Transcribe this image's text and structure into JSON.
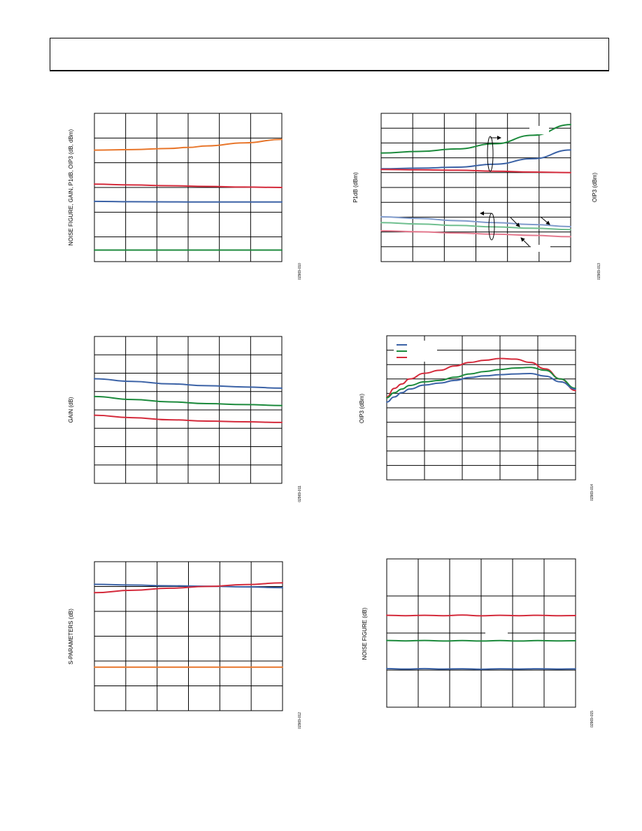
{
  "header": {},
  "colors": {
    "orange": "#e8762b",
    "red": "#d42a3b",
    "blue": "#3b62a6",
    "green": "#1c8a3c",
    "light_blue": "#7f9acb",
    "light_green": "#6fbf8f",
    "pink": "#e3778c",
    "grid": "#000000"
  },
  "chart_data": [
    {
      "id": "chart-1",
      "type": "line",
      "ylabel": "NOISE FIGURE, GAIN, P1dB, OIP3 (dB, dBm)",
      "code": "02969-010",
      "grid_cols": 6,
      "grid_rows": 6,
      "series": [
        {
          "color": "#e8762b",
          "values": [
            [
              0,
              0.752
            ],
            [
              0.2,
              0.755
            ],
            [
              0.4,
              0.763
            ],
            [
              0.5,
              0.77
            ],
            [
              0.6,
              0.78
            ],
            [
              0.8,
              0.801
            ],
            [
              1,
              0.824
            ]
          ]
        },
        {
          "color": "#d42a3b",
          "values": [
            [
              0,
              0.522
            ],
            [
              0.2,
              0.517
            ],
            [
              0.4,
              0.512
            ],
            [
              0.6,
              0.507
            ],
            [
              0.8,
              0.503
            ],
            [
              1,
              0.5
            ]
          ]
        },
        {
          "color": "#3b62a6",
          "values": [
            [
              0,
              0.406
            ],
            [
              0.2,
              0.404
            ],
            [
              0.4,
              0.403
            ],
            [
              0.6,
              0.402
            ],
            [
              0.8,
              0.402
            ],
            [
              1,
              0.402
            ]
          ]
        },
        {
          "color": "#1c8a3c",
          "values": [
            [
              0,
              0.078
            ],
            [
              0.5,
              0.078
            ],
            [
              1,
              0.078
            ]
          ]
        }
      ]
    },
    {
      "id": "chart-2",
      "type": "line",
      "ylabel": "P1dB (dBm)",
      "ylabel_right": "OIP3 (dBm)",
      "code": "02969-013",
      "grid_cols": 6,
      "grid_rows": 10,
      "series": [
        {
          "color": "#1c8a3c",
          "values": [
            [
              0,
              0.732
            ],
            [
              0.2,
              0.743
            ],
            [
              0.4,
              0.76
            ],
            [
              0.6,
              0.795
            ],
            [
              0.8,
              0.852
            ],
            [
              1,
              0.924
            ]
          ]
        },
        {
          "color": "#3b62a6",
          "values": [
            [
              0,
              0.626
            ],
            [
              0.2,
              0.63
            ],
            [
              0.4,
              0.637
            ],
            [
              0.6,
              0.657
            ],
            [
              0.8,
              0.694
            ],
            [
              1,
              0.753
            ]
          ]
        },
        {
          "color": "#d42a3b",
          "values": [
            [
              0,
              0.621
            ],
            [
              0.2,
              0.619
            ],
            [
              0.4,
              0.616
            ],
            [
              0.6,
              0.61
            ],
            [
              0.8,
              0.604
            ],
            [
              1,
              0.6
            ]
          ]
        },
        {
          "color": "#7f9acb",
          "values": [
            [
              0,
              0.302
            ],
            [
              0.2,
              0.291
            ],
            [
              0.4,
              0.276
            ],
            [
              0.6,
              0.263
            ],
            [
              0.8,
              0.25
            ],
            [
              1,
              0.236
            ]
          ]
        },
        {
          "color": "#6fbf8f",
          "values": [
            [
              0,
              0.263
            ],
            [
              0.2,
              0.254
            ],
            [
              0.4,
              0.244
            ],
            [
              0.6,
              0.234
            ],
            [
              0.8,
              0.225
            ],
            [
              1,
              0.216
            ]
          ]
        },
        {
          "color": "#e3778c",
          "values": [
            [
              0,
              0.208
            ],
            [
              0.2,
              0.201
            ],
            [
              0.4,
              0.193
            ],
            [
              0.6,
              0.185
            ],
            [
              0.8,
              0.177
            ],
            [
              1,
              0.168
            ]
          ]
        }
      ]
    },
    {
      "id": "chart-3",
      "type": "line",
      "ylabel": "GAIN (dB)",
      "code": "02969-011",
      "grid_cols": 6,
      "grid_rows": 8,
      "series": [
        {
          "color": "#3b62a6",
          "values": [
            [
              0,
              0.712
            ],
            [
              0.2,
              0.694
            ],
            [
              0.4,
              0.677
            ],
            [
              0.6,
              0.665
            ],
            [
              0.8,
              0.656
            ],
            [
              1,
              0.648
            ]
          ]
        },
        {
          "color": "#1c8a3c",
          "values": [
            [
              0,
              0.591
            ],
            [
              0.2,
              0.571
            ],
            [
              0.4,
              0.555
            ],
            [
              0.6,
              0.543
            ],
            [
              0.8,
              0.536
            ],
            [
              1,
              0.53
            ]
          ]
        },
        {
          "color": "#d42a3b",
          "values": [
            [
              0,
              0.464
            ],
            [
              0.2,
              0.447
            ],
            [
              0.4,
              0.433
            ],
            [
              0.6,
              0.424
            ],
            [
              0.8,
              0.419
            ],
            [
              1,
              0.415
            ]
          ]
        }
      ]
    },
    {
      "id": "chart-4",
      "type": "line",
      "ylabel": "OIP3 (dBm)",
      "code": "02969-014",
      "grid_cols": 5,
      "grid_rows": 10,
      "series": [
        {
          "color": "#d42a3b",
          "values": [
            [
              0,
              0.575
            ],
            [
              0.04,
              0.635
            ],
            [
              0.08,
              0.665
            ],
            [
              0.12,
              0.7
            ],
            [
              0.2,
              0.74
            ],
            [
              0.28,
              0.76
            ],
            [
              0.36,
              0.79
            ],
            [
              0.44,
              0.815
            ],
            [
              0.52,
              0.83
            ],
            [
              0.6,
              0.842
            ],
            [
              0.68,
              0.838
            ],
            [
              0.76,
              0.815
            ],
            [
              0.84,
              0.77
            ],
            [
              0.92,
              0.7
            ],
            [
              1,
              0.62
            ]
          ]
        },
        {
          "color": "#1c8a3c",
          "values": [
            [
              0,
              0.57
            ],
            [
              0.04,
              0.605
            ],
            [
              0.08,
              0.63
            ],
            [
              0.12,
              0.655
            ],
            [
              0.2,
              0.68
            ],
            [
              0.28,
              0.69
            ],
            [
              0.36,
              0.712
            ],
            [
              0.44,
              0.735
            ],
            [
              0.52,
              0.752
            ],
            [
              0.6,
              0.766
            ],
            [
              0.68,
              0.776
            ],
            [
              0.76,
              0.78
            ],
            [
              0.84,
              0.76
            ],
            [
              0.92,
              0.7
            ],
            [
              1,
              0.635
            ]
          ]
        },
        {
          "color": "#3b62a6",
          "values": [
            [
              0,
              0.54
            ],
            [
              0.04,
              0.575
            ],
            [
              0.08,
              0.605
            ],
            [
              0.12,
              0.63
            ],
            [
              0.2,
              0.658
            ],
            [
              0.28,
              0.672
            ],
            [
              0.36,
              0.69
            ],
            [
              0.44,
              0.71
            ],
            [
              0.52,
              0.722
            ],
            [
              0.6,
              0.73
            ],
            [
              0.68,
              0.735
            ],
            [
              0.76,
              0.738
            ],
            [
              0.84,
              0.72
            ],
            [
              0.92,
              0.68
            ],
            [
              1,
              0.63
            ]
          ]
        }
      ]
    },
    {
      "id": "chart-5",
      "type": "line",
      "ylabel": "S-PARAMETERS (dB)",
      "code": "02969-012",
      "grid_cols": 6,
      "grid_rows": 6,
      "series": [
        {
          "color": "#3b62a6",
          "values": [
            [
              0,
              0.848
            ],
            [
              0.2,
              0.843
            ],
            [
              0.4,
              0.838
            ],
            [
              0.6,
              0.835
            ],
            [
              0.8,
              0.831
            ],
            [
              1,
              0.826
            ]
          ]
        },
        {
          "color": "#d42a3b",
          "values": [
            [
              0,
              0.792
            ],
            [
              0.2,
              0.808
            ],
            [
              0.4,
              0.822
            ],
            [
              0.6,
              0.834
            ],
            [
              0.8,
              0.846
            ],
            [
              1,
              0.858
            ]
          ]
        },
        {
          "color": "#e8762b",
          "values": [
            [
              0,
              0.292
            ],
            [
              0.5,
              0.292
            ],
            [
              1,
              0.292
            ]
          ]
        }
      ]
    },
    {
      "id": "chart-6",
      "type": "line",
      "ylabel": "NOISE FIGURE (dB)",
      "code": "02969-015",
      "grid_cols": 6,
      "grid_rows": 4,
      "series": [
        {
          "color": "#d42a3b",
          "values": [
            [
              0,
              0.62
            ],
            [
              0.1,
              0.617
            ],
            [
              0.2,
              0.62
            ],
            [
              0.3,
              0.617
            ],
            [
              0.4,
              0.621
            ],
            [
              0.5,
              0.616
            ],
            [
              0.6,
              0.62
            ],
            [
              0.7,
              0.617
            ],
            [
              0.8,
              0.62
            ],
            [
              0.9,
              0.617
            ],
            [
              1,
              0.618
            ]
          ]
        },
        {
          "color": "#1c8a3c",
          "values": [
            [
              0,
              0.45
            ],
            [
              0.1,
              0.447
            ],
            [
              0.2,
              0.45
            ],
            [
              0.3,
              0.446
            ],
            [
              0.4,
              0.449
            ],
            [
              0.5,
              0.446
            ],
            [
              0.6,
              0.449
            ],
            [
              0.7,
              0.446
            ],
            [
              0.8,
              0.449
            ],
            [
              0.9,
              0.447
            ],
            [
              1,
              0.448
            ]
          ]
        },
        {
          "color": "#3b62a6",
          "values": [
            [
              0,
              0.26
            ],
            [
              0.1,
              0.257
            ],
            [
              0.2,
              0.26
            ],
            [
              0.3,
              0.257
            ],
            [
              0.4,
              0.259
            ],
            [
              0.5,
              0.256
            ],
            [
              0.6,
              0.259
            ],
            [
              0.7,
              0.257
            ],
            [
              0.8,
              0.259
            ],
            [
              0.9,
              0.257
            ],
            [
              1,
              0.258
            ]
          ]
        }
      ]
    }
  ]
}
